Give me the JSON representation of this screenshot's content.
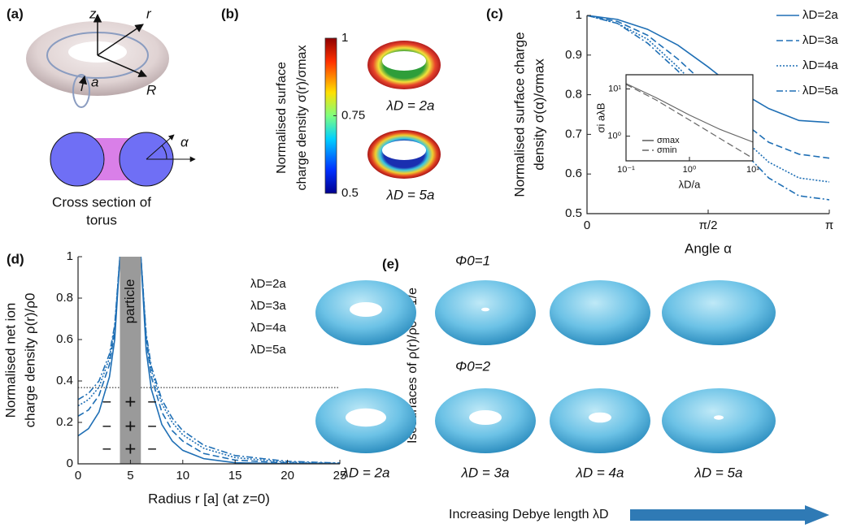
{
  "panel_labels": [
    "(a)",
    "(b)",
    "(c)",
    "(d)",
    "(e)"
  ],
  "panel_a": {
    "labels": [
      "z",
      "r",
      "a",
      "R",
      "α"
    ],
    "caption": [
      "Cross section of",
      "torus"
    ]
  },
  "panel_b": {
    "colorbar_label": [
      "Normalised surface",
      "charge density σ(r)/σmax"
    ],
    "colorbar_lim": [
      0.5,
      1
    ],
    "colorbar_ticks": [
      0.5,
      0.75,
      1
    ],
    "captions": [
      "λD = 2a",
      "λD = 5a"
    ]
  },
  "chart_data": [
    {
      "type": "line",
      "ylabel": [
        "Normalised surface charge",
        "density σ(α)/σmax"
      ],
      "xlabel": "Angle α",
      "x": [
        0,
        0.3927,
        0.7854,
        1.1781,
        1.5708,
        1.9635,
        2.3562,
        2.7489,
        3.1416
      ],
      "xlim": [
        0,
        3.1416
      ],
      "xticks": [
        0,
        {
          "value": 1.5708,
          "label": "π/2"
        },
        {
          "value": 3.1416,
          "label": "π"
        }
      ],
      "ylim": [
        0.5,
        1
      ],
      "yticks": [
        0.5,
        0.6,
        0.7,
        0.8,
        0.9,
        1
      ],
      "legend": "upper right",
      "legend_style": "line",
      "series": [
        {
          "name": "λD=2a",
          "color": "#1f6fb5",
          "dash": "solid",
          "values": [
            1,
            0.99,
            0.965,
            0.925,
            0.87,
            0.81,
            0.765,
            0.735,
            0.73
          ]
        },
        {
          "name": "λD=3a",
          "color": "#1f6fb5",
          "dash": "dashed",
          "values": [
            1,
            0.985,
            0.95,
            0.89,
            0.82,
            0.74,
            0.68,
            0.65,
            0.64
          ]
        },
        {
          "name": "λD=4a",
          "color": "#1f6fb5",
          "dash": "dotted",
          "values": [
            1,
            0.98,
            0.94,
            0.87,
            0.79,
            0.7,
            0.63,
            0.59,
            0.58
          ]
        },
        {
          "name": "λD=5a",
          "color": "#1f6fb5",
          "dash": "dashdot",
          "values": [
            1,
            0.98,
            0.93,
            0.86,
            0.77,
            0.67,
            0.59,
            0.545,
            0.535
          ]
        }
      ]
    },
    {
      "type": "line",
      "ylabel": "σi aλB",
      "xlabel": "λD/a",
      "log_x": true,
      "log_y": true,
      "x": [
        0.1,
        0.3,
        1,
        3,
        10
      ],
      "xlim": [
        0.1,
        10
      ],
      "xticks": [
        {
          "value": 0.1,
          "label": "10⁻¹"
        },
        {
          "value": 1,
          "label": "10⁰"
        },
        {
          "value": 10,
          "label": "10¹"
        }
      ],
      "ylim": [
        0.3,
        20
      ],
      "yticks": [
        {
          "value": 1,
          "label": "10⁰"
        },
        {
          "value": 10,
          "label": "10¹"
        }
      ],
      "legend": "lower left",
      "legend_style": "line",
      "series": [
        {
          "name": "σmax",
          "color": "#666",
          "dash": "solid",
          "values": [
            13,
            6.5,
            2.8,
            1.4,
            0.75
          ]
        },
        {
          "name": "σmin",
          "color": "#666",
          "dash": "dashed",
          "values": [
            12.5,
            5.8,
            2.2,
            0.9,
            0.34
          ]
        }
      ]
    },
    {
      "type": "line",
      "ylabel": [
        "Normalised net ion",
        "charge density ρ(r)/ρ0"
      ],
      "xlabel": "Radius r [a] (at z=0)",
      "x": [
        0,
        1,
        2,
        3,
        3.5,
        4,
        6,
        6.5,
        7,
        8,
        9,
        10,
        12,
        15,
        20,
        25
      ],
      "xlim": [
        0,
        25
      ],
      "xticks": [
        0,
        5,
        10,
        15,
        20,
        25
      ],
      "ylim": [
        0,
        1
      ],
      "yticks": [
        0,
        0.2,
        0.4,
        0.6,
        0.8,
        1
      ],
      "legend": "upper right",
      "legend_style": "text",
      "hline": 0.368,
      "band": {
        "x": [
          4,
          6
        ],
        "label": "particle"
      },
      "signs": [
        "−",
        "+"
      ],
      "series": [
        {
          "name": "λD=2a",
          "color": "#1f6fb5",
          "dash": "solid",
          "values": [
            0.135,
            0.17,
            0.25,
            0.42,
            0.6,
            1,
            1,
            0.55,
            0.36,
            0.19,
            0.11,
            0.065,
            0.025,
            0.005,
            0.001,
            0
          ]
        },
        {
          "name": "λD=3a",
          "color": "#1f6fb5",
          "dash": "dashed",
          "values": [
            0.23,
            0.26,
            0.33,
            0.48,
            0.64,
            1,
            1,
            0.6,
            0.42,
            0.25,
            0.16,
            0.11,
            0.05,
            0.018,
            0.004,
            0.001
          ]
        },
        {
          "name": "λD=4a",
          "color": "#1f6fb5",
          "dash": "dotted",
          "values": [
            0.28,
            0.31,
            0.37,
            0.51,
            0.66,
            1,
            1,
            0.62,
            0.45,
            0.29,
            0.2,
            0.14,
            0.075,
            0.03,
            0.008,
            0.002
          ]
        },
        {
          "name": "λD=5a",
          "color": "#1f6fb5",
          "dash": "dashdot",
          "values": [
            0.31,
            0.34,
            0.4,
            0.53,
            0.67,
            1,
            1,
            0.63,
            0.47,
            0.31,
            0.22,
            0.16,
            0.09,
            0.04,
            0.012,
            0.004
          ]
        }
      ]
    }
  ],
  "panel_e": {
    "ylabel": "Isosurfaces of ρ(r)/ρ0 = 1/e",
    "rows": [
      "Φ0=1",
      "Φ0=2"
    ],
    "captions": [
      "λD = 2a",
      "λD = 3a",
      "λD = 4a",
      "λD = 5a"
    ],
    "arrow_label": "Increasing Debye length λD"
  }
}
